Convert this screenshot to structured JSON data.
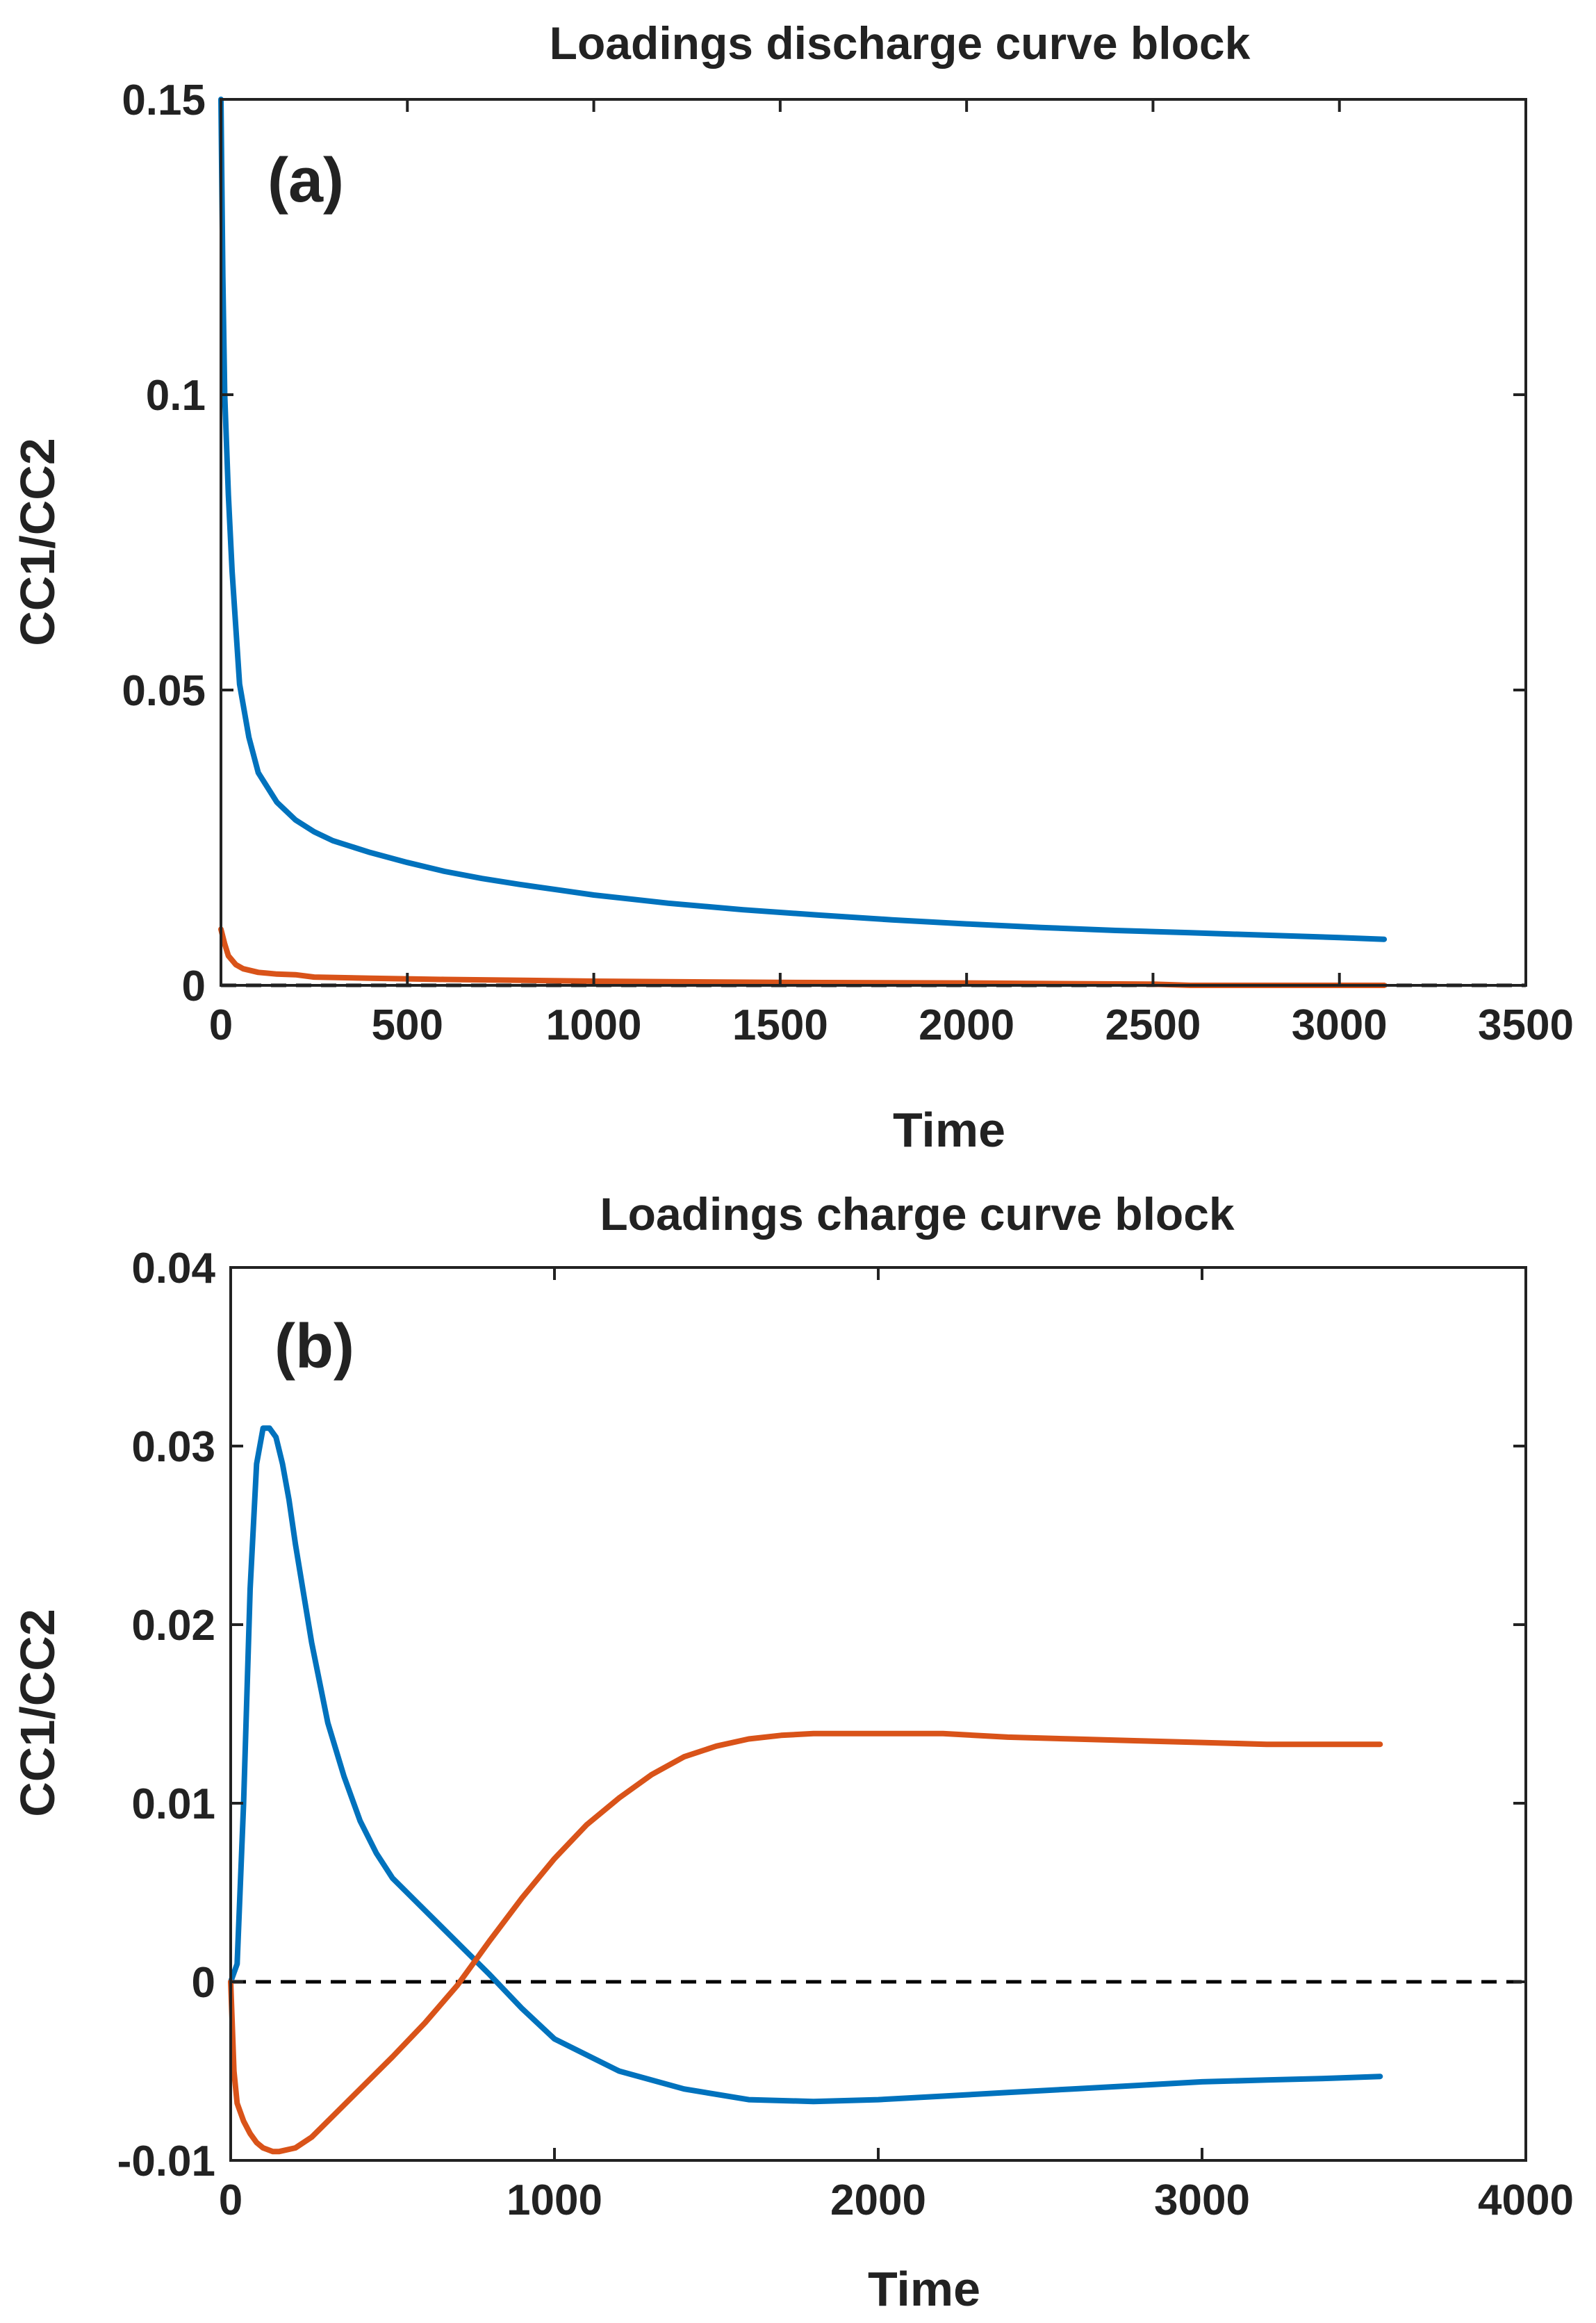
{
  "chart_data": [
    {
      "panel": "(a)",
      "type": "line",
      "title": "Loadings discharge curve block",
      "xlabel": "Time",
      "ylabel": "CC1/CC2",
      "xlim": [
        0,
        3500
      ],
      "ylim": [
        0,
        0.15
      ],
      "xticks": [
        0,
        500,
        1000,
        1500,
        2000,
        2500,
        3000,
        3500
      ],
      "yticks": [
        0,
        0.05,
        0.1,
        0.15
      ],
      "xtick_labels": [
        "0",
        "500",
        "1000",
        "1500",
        "2000",
        "2500",
        "3000",
        "3500"
      ],
      "ytick_labels": [
        "0",
        "0.05",
        "0.1",
        "0.15"
      ],
      "grid": false,
      "zero_line": 0,
      "series": [
        {
          "name": "CC1",
          "color": "#0072BD",
          "x": [
            0,
            5,
            10,
            20,
            30,
            50,
            75,
            100,
            150,
            200,
            250,
            300,
            400,
            500,
            600,
            700,
            800,
            900,
            1000,
            1200,
            1400,
            1600,
            1800,
            2000,
            2200,
            2400,
            2600,
            2800,
            3000,
            3120
          ],
          "y": [
            0.15,
            0.12,
            0.1,
            0.083,
            0.07,
            0.051,
            0.042,
            0.036,
            0.031,
            0.028,
            0.026,
            0.0245,
            0.0225,
            0.0208,
            0.0193,
            0.0181,
            0.0171,
            0.0162,
            0.0153,
            0.0139,
            0.0128,
            0.0119,
            0.0111,
            0.0104,
            0.0098,
            0.0093,
            0.0089,
            0.0085,
            0.0081,
            0.0078
          ]
        },
        {
          "name": "CC2",
          "color": "#D95319",
          "x": [
            0,
            10,
            20,
            40,
            60,
            100,
            150,
            200,
            250,
            400,
            600,
            1000,
            1500,
            2000,
            2500,
            2600,
            3120
          ],
          "y": [
            0.0095,
            0.007,
            0.005,
            0.0035,
            0.0028,
            0.0022,
            0.0019,
            0.0018,
            0.0014,
            0.0012,
            0.001,
            0.0007,
            0.0005,
            0.0004,
            0.0002,
            0.0,
            0.0
          ]
        }
      ]
    },
    {
      "panel": "(b)",
      "type": "line",
      "title": "Loadings charge curve block",
      "xlabel": "Time",
      "ylabel": "CC1/CC2",
      "xlim": [
        0,
        4000
      ],
      "ylim": [
        -0.01,
        0.04
      ],
      "xticks": [
        0,
        1000,
        2000,
        3000,
        4000
      ],
      "yticks": [
        -0.01,
        0,
        0.01,
        0.02,
        0.03,
        0.04
      ],
      "xtick_labels": [
        "0",
        "1000",
        "2000",
        "3000",
        "4000"
      ],
      "ytick_labels": [
        "-0.01",
        "0",
        "0.01",
        "0.02",
        "0.03",
        "0.04"
      ],
      "grid": false,
      "zero_line": 0,
      "series": [
        {
          "name": "CC1",
          "color": "#0072BD",
          "x": [
            0,
            20,
            40,
            60,
            80,
            100,
            120,
            140,
            160,
            180,
            200,
            250,
            300,
            350,
            400,
            450,
            500,
            600,
            700,
            800,
            900,
            1000,
            1200,
            1400,
            1600,
            1800,
            2000,
            2200,
            2400,
            2600,
            2800,
            3000,
            3200,
            3400,
            3550
          ],
          "y": [
            0,
            0.001,
            0.01,
            0.022,
            0.029,
            0.031,
            0.031,
            0.0305,
            0.029,
            0.027,
            0.0245,
            0.019,
            0.0145,
            0.0115,
            0.009,
            0.0072,
            0.0058,
            0.004,
            0.0022,
            0.0004,
            -0.0015,
            -0.0032,
            -0.005,
            -0.006,
            -0.0066,
            -0.0067,
            -0.0066,
            -0.0064,
            -0.0062,
            -0.006,
            -0.0058,
            -0.0056,
            -0.0055,
            -0.0054,
            -0.0053
          ]
        },
        {
          "name": "CC2",
          "color": "#D95319",
          "x": [
            0,
            10,
            20,
            40,
            60,
            80,
            100,
            130,
            150,
            200,
            250,
            300,
            400,
            500,
            600,
            700,
            800,
            900,
            1000,
            1100,
            1200,
            1300,
            1400,
            1500,
            1600,
            1700,
            1800,
            2000,
            2200,
            2400,
            2600,
            2800,
            3000,
            3200,
            3550
          ],
          "y": [
            0,
            -0.005,
            -0.0068,
            -0.0078,
            -0.0085,
            -0.009,
            -0.0093,
            -0.0095,
            -0.0095,
            -0.0093,
            -0.0087,
            -0.0078,
            -0.006,
            -0.0042,
            -0.0023,
            -0.0002,
            0.0023,
            0.0047,
            0.0069,
            0.0088,
            0.0103,
            0.0116,
            0.0126,
            0.0132,
            0.0136,
            0.0138,
            0.0139,
            0.0139,
            0.0139,
            0.0137,
            0.0136,
            0.0135,
            0.0134,
            0.0133,
            0.0133
          ]
        }
      ]
    }
  ]
}
